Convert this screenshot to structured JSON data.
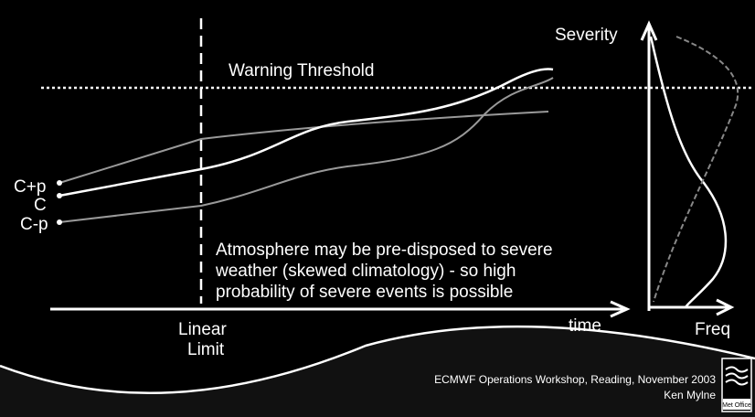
{
  "axis": {
    "y_label": "Severity",
    "x_label": "time",
    "freq_label": "Freq"
  },
  "threshold": {
    "label": "Warning Threshold"
  },
  "linear_limit": {
    "lines": [
      "Linear",
      "Limit"
    ]
  },
  "scenarios": [
    {
      "label": "C+p"
    },
    {
      "label": "C"
    },
    {
      "label": "C-p"
    }
  ],
  "note": {
    "lines": [
      "Atmosphere may be pre-disposed to severe",
      "weather (skewed climatology) - so high",
      "probability of severe events is possible"
    ]
  },
  "footer": {
    "event": "ECMWF Operations Workshop, Reading, November 2003",
    "author": "Ken Mylne",
    "logo": "Met Office"
  }
}
